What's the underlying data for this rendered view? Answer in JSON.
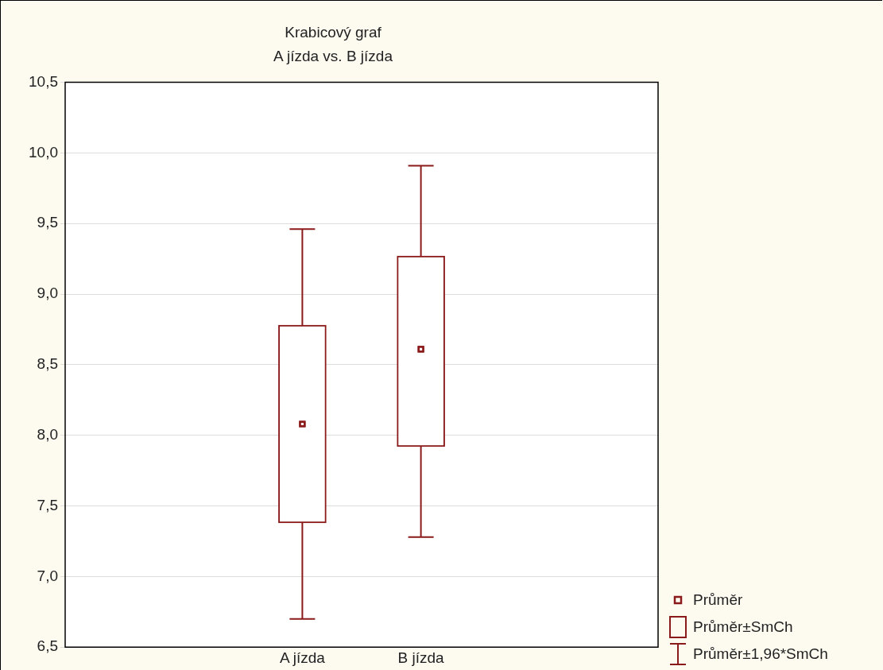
{
  "chart_data": {
    "type": "box",
    "title": "Krabicový graf",
    "subtitle": "A jízda vs. B jízda",
    "categories": [
      "A jízda",
      "B jízda"
    ],
    "color": "#8b1a1a",
    "boxes": [
      {
        "low": 6.7,
        "q1": 7.38,
        "median": 8.08,
        "q3": 8.78,
        "high": 9.46
      },
      {
        "low": 7.28,
        "q1": 7.92,
        "median": 8.61,
        "q3": 9.27,
        "high": 9.91
      }
    ],
    "ylim": [
      6.5,
      10.5
    ],
    "yticks": [
      {
        "value": 6.5,
        "label": "6,5"
      },
      {
        "value": 7,
        "label": "7,0"
      },
      {
        "value": 7.5,
        "label": "7,5"
      },
      {
        "value": 8,
        "label": "8,0"
      },
      {
        "value": 8.5,
        "label": "8,5"
      },
      {
        "value": 9,
        "label": "9,0"
      },
      {
        "value": 9.5,
        "label": "9,5"
      },
      {
        "value": 10,
        "label": "10,0"
      },
      {
        "value": 10.5,
        "label": "10,5"
      }
    ],
    "grid": "y",
    "marker": "square",
    "annotations": [
      "Průměr",
      "Průměr±SmCh",
      "Průměr±1,96*SmCh"
    ]
  }
}
